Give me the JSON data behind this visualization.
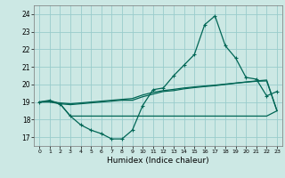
{
  "title": "",
  "xlabel": "Humidex (Indice chaleur)",
  "bg_color": "#cce8e4",
  "grid_color": "#99cccc",
  "line_color": "#006655",
  "xlim": [
    -0.5,
    23.5
  ],
  "ylim": [
    16.5,
    24.5
  ],
  "xticks": [
    0,
    1,
    2,
    3,
    4,
    5,
    6,
    7,
    8,
    9,
    10,
    11,
    12,
    13,
    14,
    15,
    16,
    17,
    18,
    19,
    20,
    21,
    22,
    23
  ],
  "yticks": [
    17,
    18,
    19,
    20,
    21,
    22,
    23,
    24
  ],
  "line1_x": [
    0,
    1,
    2,
    3,
    4,
    5,
    6,
    7,
    8,
    9,
    10,
    11,
    12,
    13,
    14,
    15,
    16,
    17,
    18,
    19,
    20,
    21,
    22,
    23
  ],
  "line1_y": [
    19.0,
    19.1,
    18.9,
    18.2,
    17.7,
    17.4,
    17.2,
    16.9,
    16.9,
    17.4,
    18.8,
    19.7,
    19.8,
    20.5,
    21.1,
    21.7,
    23.4,
    23.9,
    22.2,
    21.5,
    20.4,
    20.3,
    19.35,
    19.6
  ],
  "line2_x": [
    0,
    1,
    2,
    3,
    4,
    5,
    6,
    7,
    8,
    9,
    10,
    11,
    12,
    13,
    14,
    15,
    16,
    17,
    18,
    19,
    20,
    21,
    22,
    23
  ],
  "line2_y": [
    19.0,
    19.05,
    18.9,
    18.85,
    18.9,
    18.95,
    19.0,
    19.05,
    19.1,
    19.1,
    19.3,
    19.45,
    19.6,
    19.65,
    19.75,
    19.82,
    19.88,
    19.93,
    20.0,
    20.07,
    20.13,
    20.18,
    20.2,
    18.5
  ],
  "line3_x": [
    0,
    1,
    2,
    3,
    4,
    5,
    6,
    7,
    8,
    9,
    10,
    11,
    12,
    13,
    14,
    15,
    16,
    17,
    18,
    19,
    20,
    21,
    22,
    23
  ],
  "line3_y": [
    19.0,
    19.0,
    18.9,
    18.2,
    18.2,
    18.2,
    18.2,
    18.2,
    18.2,
    18.2,
    18.2,
    18.2,
    18.2,
    18.2,
    18.2,
    18.2,
    18.2,
    18.2,
    18.2,
    18.2,
    18.2,
    18.2,
    18.2,
    18.5
  ],
  "line4_x": [
    0,
    1,
    2,
    3,
    4,
    5,
    6,
    7,
    8,
    9,
    10,
    11,
    12,
    13,
    14,
    15,
    16,
    17,
    18,
    19,
    20,
    21,
    22,
    23
  ],
  "line4_y": [
    19.0,
    19.02,
    18.95,
    18.9,
    18.95,
    19.0,
    19.05,
    19.1,
    19.15,
    19.2,
    19.4,
    19.55,
    19.65,
    19.72,
    19.8,
    19.86,
    19.91,
    19.96,
    20.02,
    20.08,
    20.14,
    20.2,
    20.25,
    18.5
  ]
}
